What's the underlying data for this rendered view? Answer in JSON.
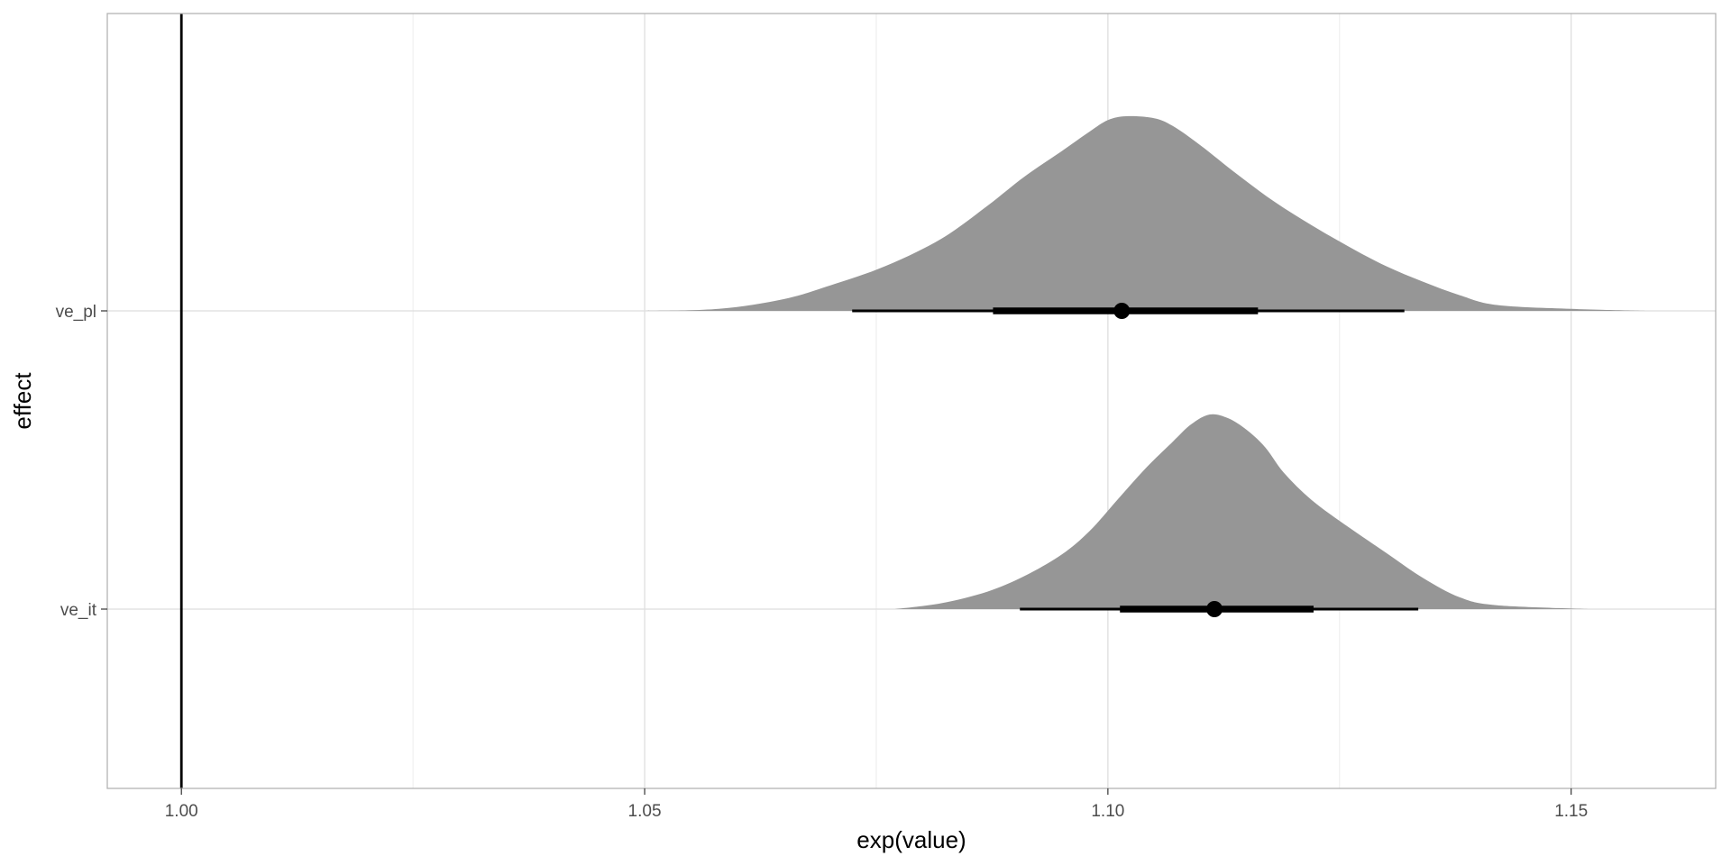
{
  "chart_data": {
    "type": "halfeye",
    "title": "",
    "xlabel": "exp(value)",
    "ylabel": "effect",
    "xlim": [
      0.992,
      1.1656
    ],
    "grid": true,
    "x_ticks": [
      1.0,
      1.05,
      1.1,
      1.15
    ],
    "x_tick_labels": [
      "1.00",
      "1.05",
      "1.10",
      "1.15"
    ],
    "reference_line": 1.0,
    "categories": [
      "ve_pl",
      "ve_it"
    ],
    "series": [
      {
        "category": "ve_pl",
        "point": 1.1015,
        "interval_66": [
          1.0876,
          1.1162
        ],
        "interval_95": [
          1.0724,
          1.132
        ],
        "density": [
          [
            1.05,
            0.0
          ],
          [
            1.058,
            0.01
          ],
          [
            1.065,
            0.06
          ],
          [
            1.07,
            0.13
          ],
          [
            1.076,
            0.23
          ],
          [
            1.082,
            0.37
          ],
          [
            1.087,
            0.54
          ],
          [
            1.091,
            0.69
          ],
          [
            1.095,
            0.82
          ],
          [
            1.098,
            0.92
          ],
          [
            1.1,
            0.98
          ],
          [
            1.102,
            1.0
          ],
          [
            1.105,
            0.99
          ],
          [
            1.107,
            0.95
          ],
          [
            1.11,
            0.85
          ],
          [
            1.114,
            0.7
          ],
          [
            1.118,
            0.56
          ],
          [
            1.122,
            0.44
          ],
          [
            1.126,
            0.33
          ],
          [
            1.13,
            0.23
          ],
          [
            1.134,
            0.15
          ],
          [
            1.138,
            0.08
          ],
          [
            1.142,
            0.03
          ],
          [
            1.15,
            0.01
          ],
          [
            1.158,
            0.0
          ]
        ]
      },
      {
        "category": "ve_it",
        "point": 1.1115,
        "interval_66": [
          1.1013,
          1.1222
        ],
        "interval_95": [
          1.0905,
          1.1335
        ],
        "density": [
          [
            1.077,
            0.0
          ],
          [
            1.082,
            0.03
          ],
          [
            1.087,
            0.09
          ],
          [
            1.091,
            0.17
          ],
          [
            1.095,
            0.28
          ],
          [
            1.098,
            0.4
          ],
          [
            1.101,
            0.56
          ],
          [
            1.104,
            0.72
          ],
          [
            1.107,
            0.86
          ],
          [
            1.109,
            0.95
          ],
          [
            1.111,
            1.0
          ],
          [
            1.113,
            0.98
          ],
          [
            1.115,
            0.92
          ],
          [
            1.117,
            0.83
          ],
          [
            1.119,
            0.7
          ],
          [
            1.122,
            0.56
          ],
          [
            1.126,
            0.42
          ],
          [
            1.13,
            0.29
          ],
          [
            1.134,
            0.16
          ],
          [
            1.138,
            0.06
          ],
          [
            1.142,
            0.02
          ],
          [
            1.152,
            0.0
          ]
        ]
      }
    ],
    "colors": {
      "density_fill": "#969696",
      "interval": "#000000",
      "grid": "#dedede",
      "panel_border": "#b3b3b3",
      "reference_line": "#000000"
    }
  }
}
